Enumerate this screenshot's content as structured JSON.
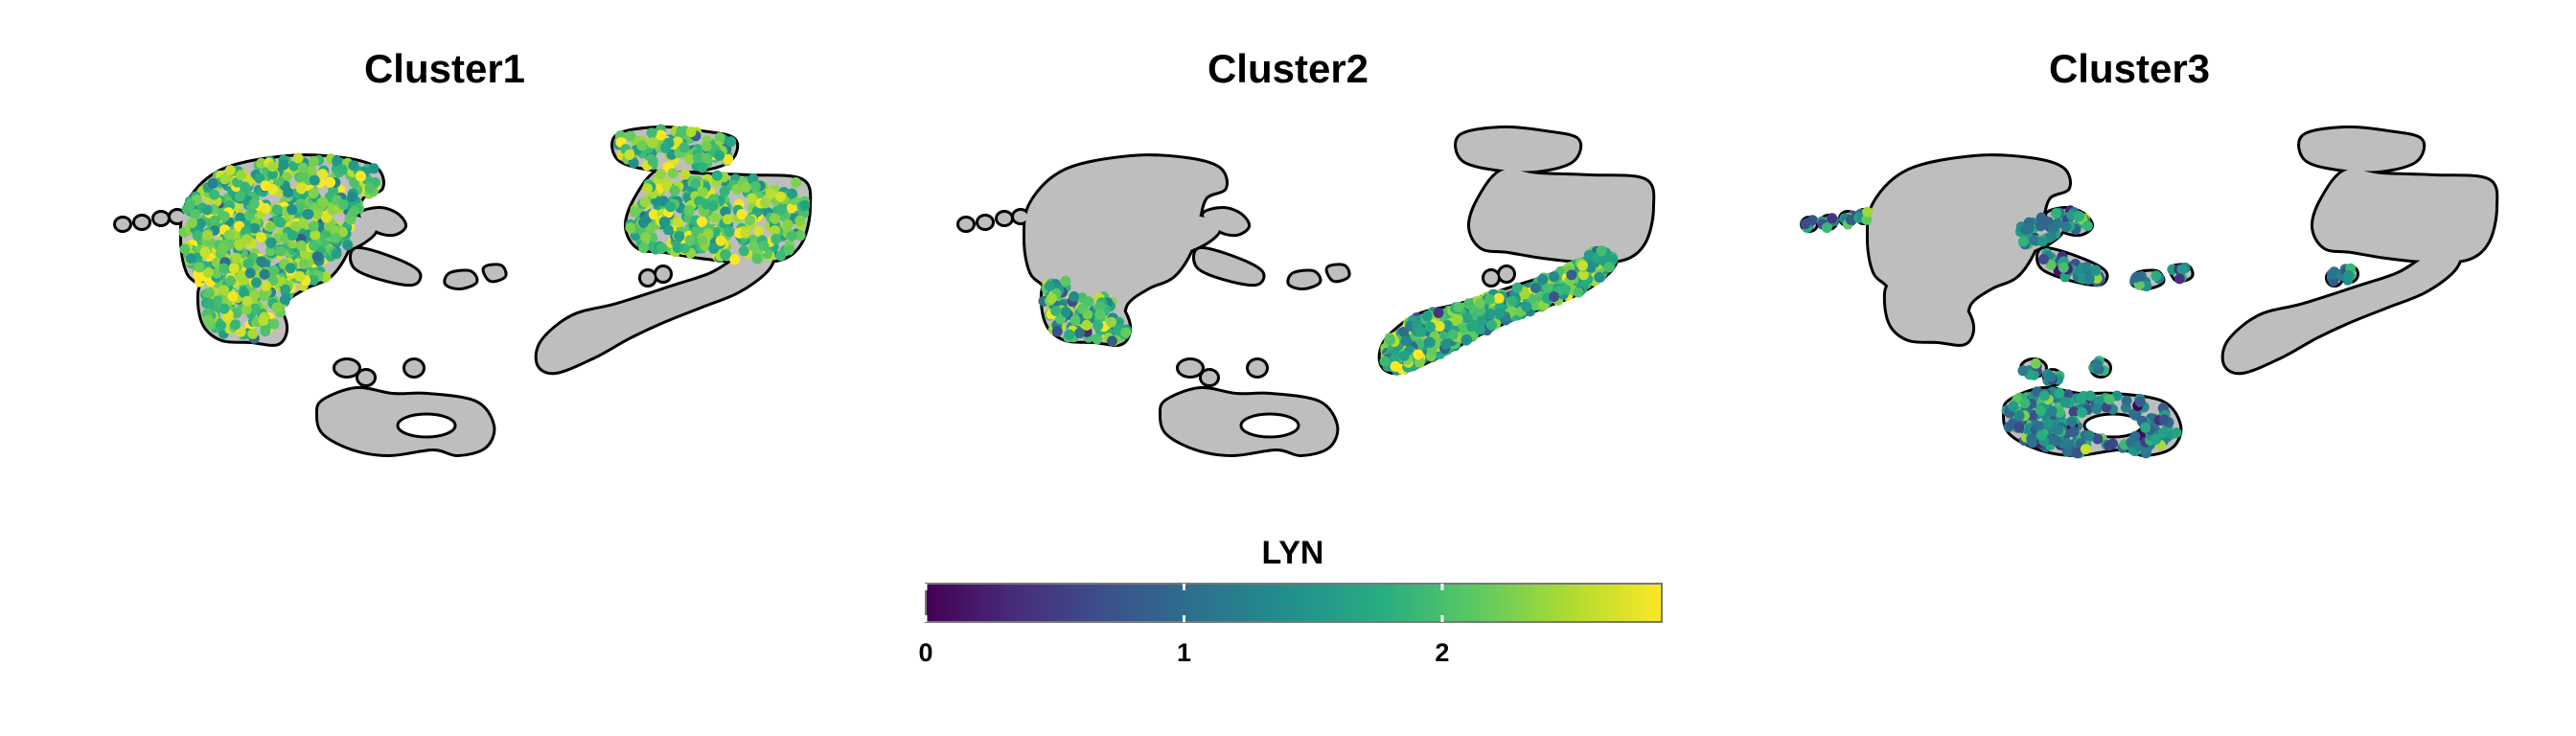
{
  "chart_data": {
    "type": "scatter",
    "feature": "LYN",
    "panels": [
      {
        "title": "Cluster1",
        "highlight": {
          "cluster": "c1",
          "level": 2.1,
          "spread": 0.45
        }
      },
      {
        "title": "Cluster2",
        "highlight": {
          "cluster": "c2",
          "level": 1.9,
          "spread": 0.5
        }
      },
      {
        "title": "Cluster3",
        "highlight": {
          "cluster": "c3",
          "level": 1.3,
          "spread": 0.5
        }
      }
    ],
    "colorbar": {
      "title": "LYN",
      "range": [
        0,
        2.85
      ],
      "ticks": [
        0,
        1,
        2
      ],
      "colormap": "viridis",
      "colors": [
        "#440154",
        "#472d7b",
        "#3b528b",
        "#2c728e",
        "#21918c",
        "#28ae80",
        "#5ec962",
        "#addc30",
        "#fde725"
      ]
    },
    "background_color": "#bebebe",
    "outline_color": "#000000"
  }
}
